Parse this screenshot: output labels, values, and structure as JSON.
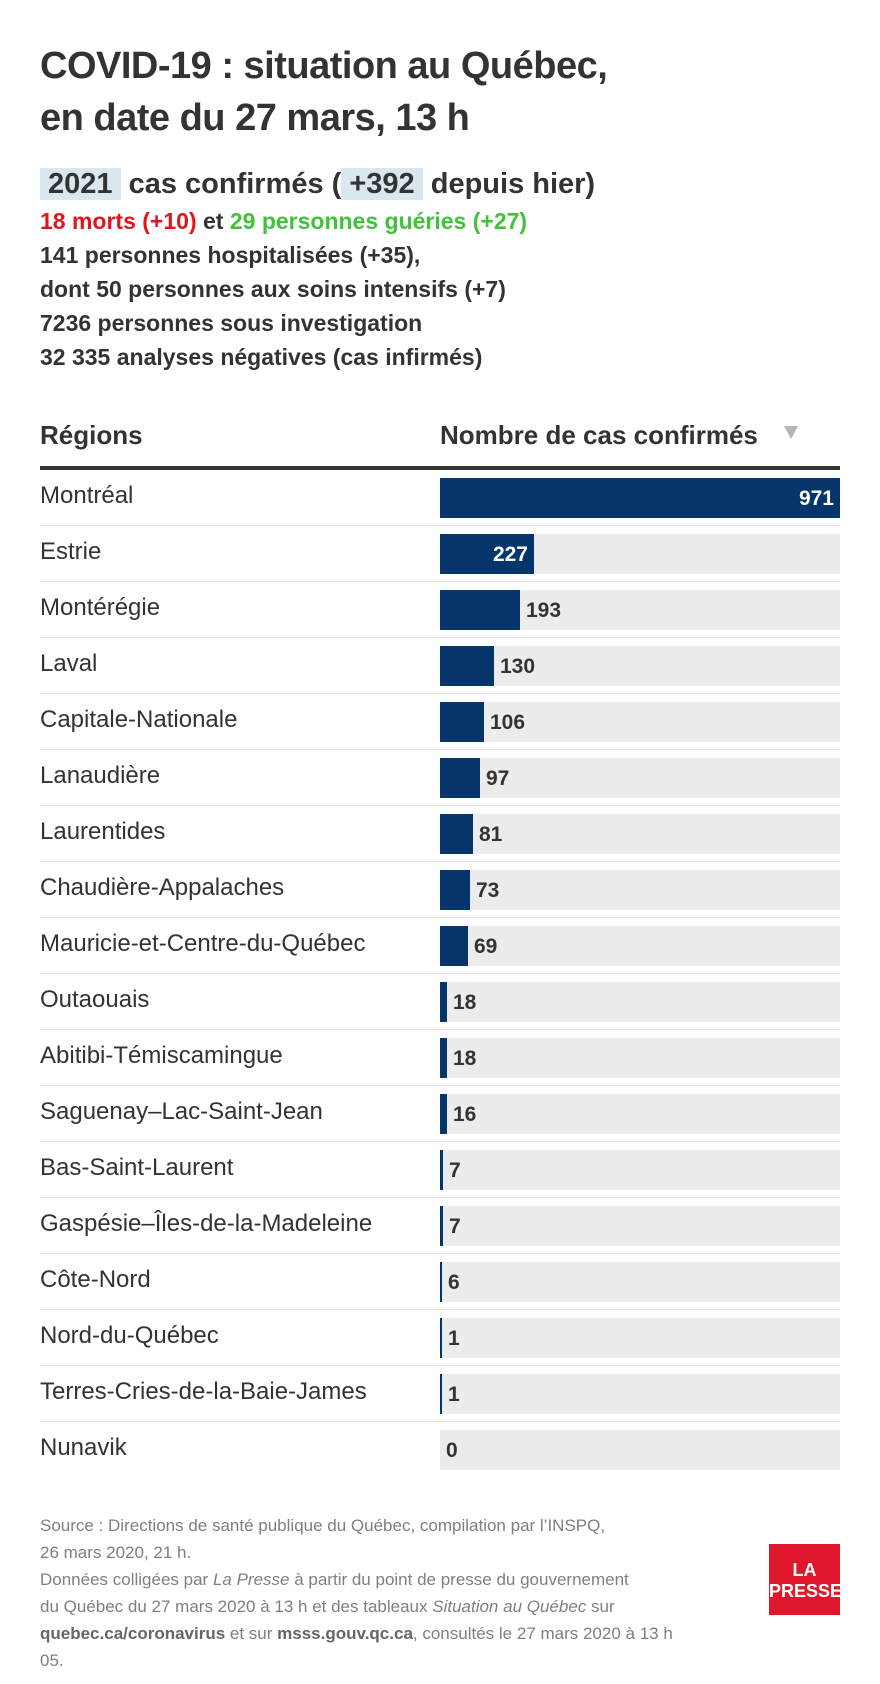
{
  "title": {
    "line1": "COVID-19 : situation au Québec,",
    "line2": "en date du 27 mars, 13 h"
  },
  "summary": {
    "confirmed": "2021",
    "confirmed_label": "cas confirmés (",
    "new_cases": "+392",
    "new_cases_label": "depuis hier)",
    "deaths": "18 morts (+10)",
    "connector": "et",
    "recovered": "29 personnes guéries (+27)",
    "hospitalized": "141 personnes hospitalisées (+35),",
    "intensive_care": "dont 50 personnes aux soins intensifs (+7)",
    "investigation": "7236 personnes sous investigation",
    "negative": "32 335 analyses négatives (cas infirmés)"
  },
  "table": {
    "col_region": "Régions",
    "col_count": "Nombre de cas confirmés",
    "sort_icon": "sort-descending-icon"
  },
  "chart_data": {
    "type": "bar",
    "orientation": "horizontal",
    "categories": [
      "Montréal",
      "Estrie",
      "Montérégie",
      "Laval",
      "Capitale-Nationale",
      "Lanaudière",
      "Laurentides",
      "Chaudière-Appalaches",
      "Mauricie-et-Centre-du-Québec",
      "Outaouais",
      "Abitibi-Témiscamingue",
      "Saguenay–Lac-Saint-Jean",
      "Bas-Saint-Laurent",
      "Gaspésie–Îles-de-la-Madeleine",
      "Côte-Nord",
      "Nord-du-Québec",
      "Terres-Cries-de-la-Baie-James",
      "Nunavik"
    ],
    "values": [
      971,
      227,
      193,
      130,
      106,
      97,
      81,
      73,
      69,
      18,
      18,
      16,
      7,
      7,
      6,
      1,
      1,
      0
    ],
    "xlim": [
      0,
      971
    ],
    "bar_color": "#05356b",
    "track_color": "#ececec"
  },
  "footer": {
    "source1": "Source : Directions de santé publique du Québec, compilation par l’INSPQ,",
    "source2": "26 mars 2020, 21 h.",
    "data_a": "Données colligées par ",
    "data_b": "La Presse",
    "data_c": " à partir du point de presse du gouvernement",
    "data_d": "du Québec du 27 mars 2020 à 13 h et des tableaux ",
    "data_e": "Situation au Québec",
    "data_f": " sur",
    "link1": "quebec.ca/coronavirus",
    "data_g": " et sur ",
    "link2": "msss.gouv.qc.ca",
    "data_h": ", consultés le 27 mars 2020 à 13 h 05."
  },
  "logo": {
    "line1": "LA",
    "line2": "PRESSE",
    "color": "#e0162b"
  }
}
